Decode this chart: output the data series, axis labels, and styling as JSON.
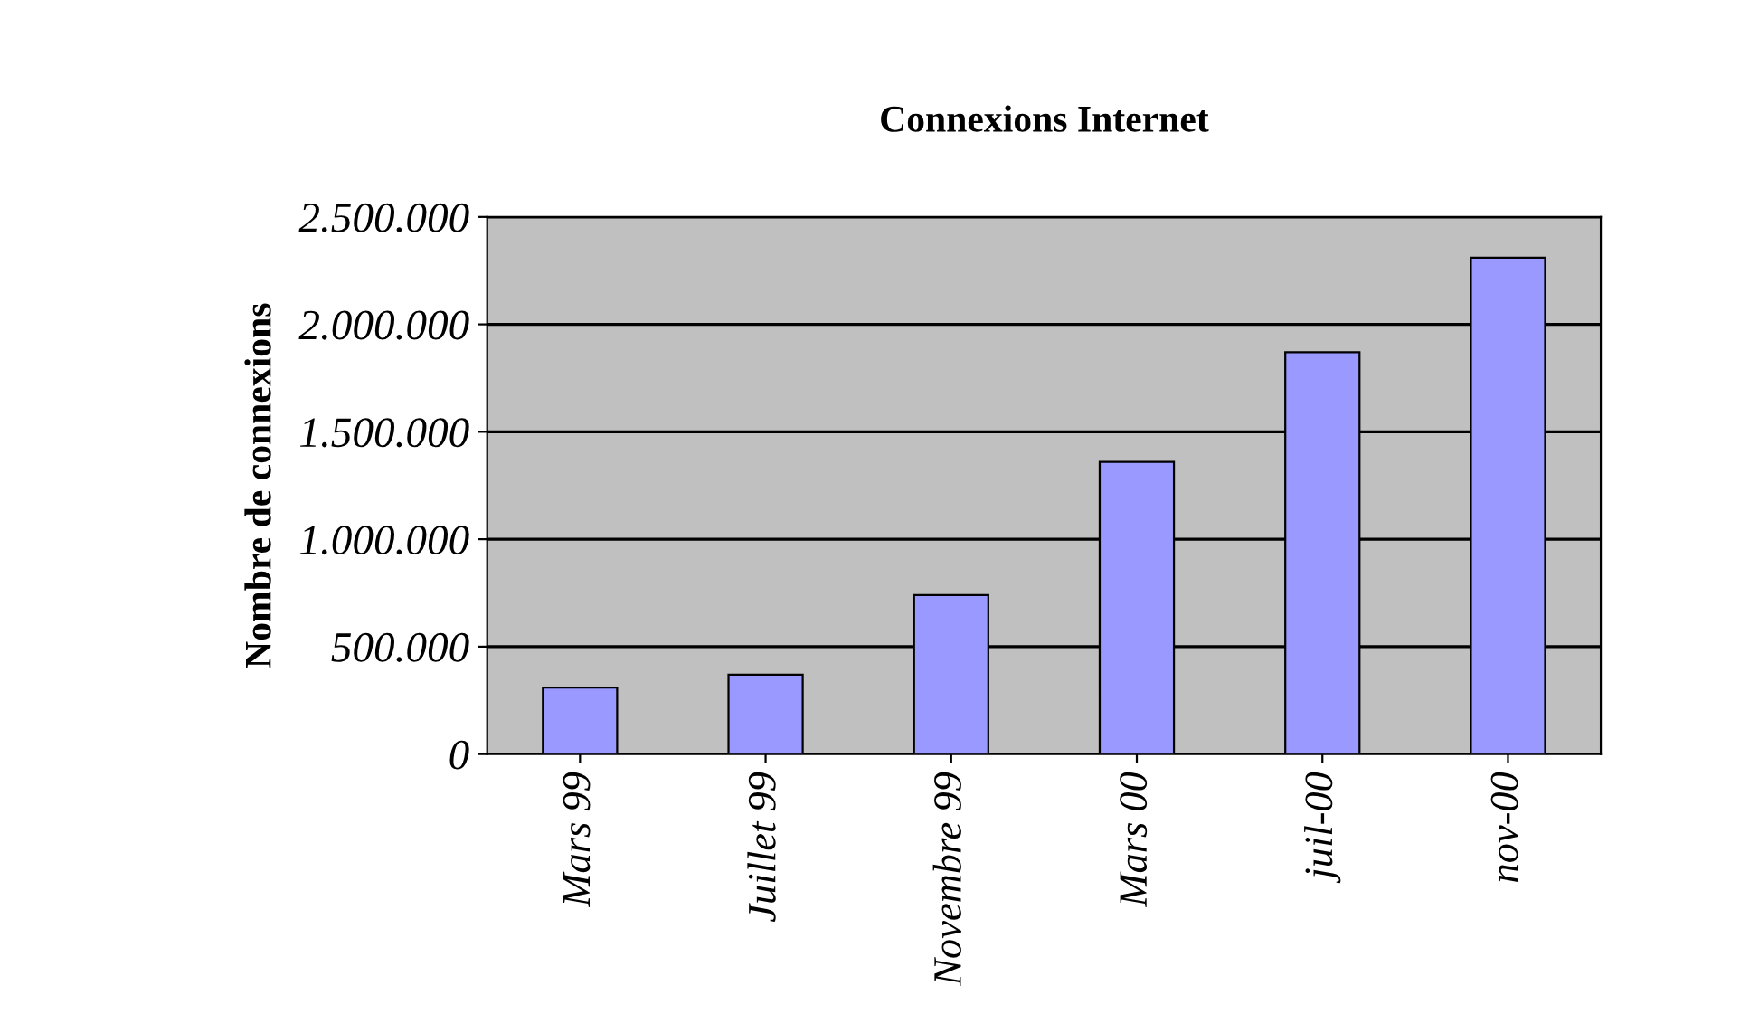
{
  "chart_data": {
    "type": "bar",
    "title": "Connexions Internet",
    "ylabel": "Nombre de connexions",
    "categories": [
      "Mars 99",
      "Juillet 99",
      "Novembre 99",
      "Mars 00",
      "juil-00",
      "nov-00"
    ],
    "values": [
      310000,
      370000,
      740000,
      1360000,
      1870000,
      2310000
    ],
    "color": "#9999ff",
    "ylim": [
      0,
      2500000
    ],
    "yticks": [
      0,
      {
        "value": 500000,
        "label": "500.000"
      },
      {
        "value": 1000000,
        "label": "1.000.000"
      },
      {
        "value": 1500000,
        "label": "1.500.000"
      },
      {
        "value": 2000000,
        "label": "2.000.000"
      },
      {
        "value": 2500000,
        "label": "2.500.000"
      }
    ],
    "grid": "y",
    "legend": false
  }
}
